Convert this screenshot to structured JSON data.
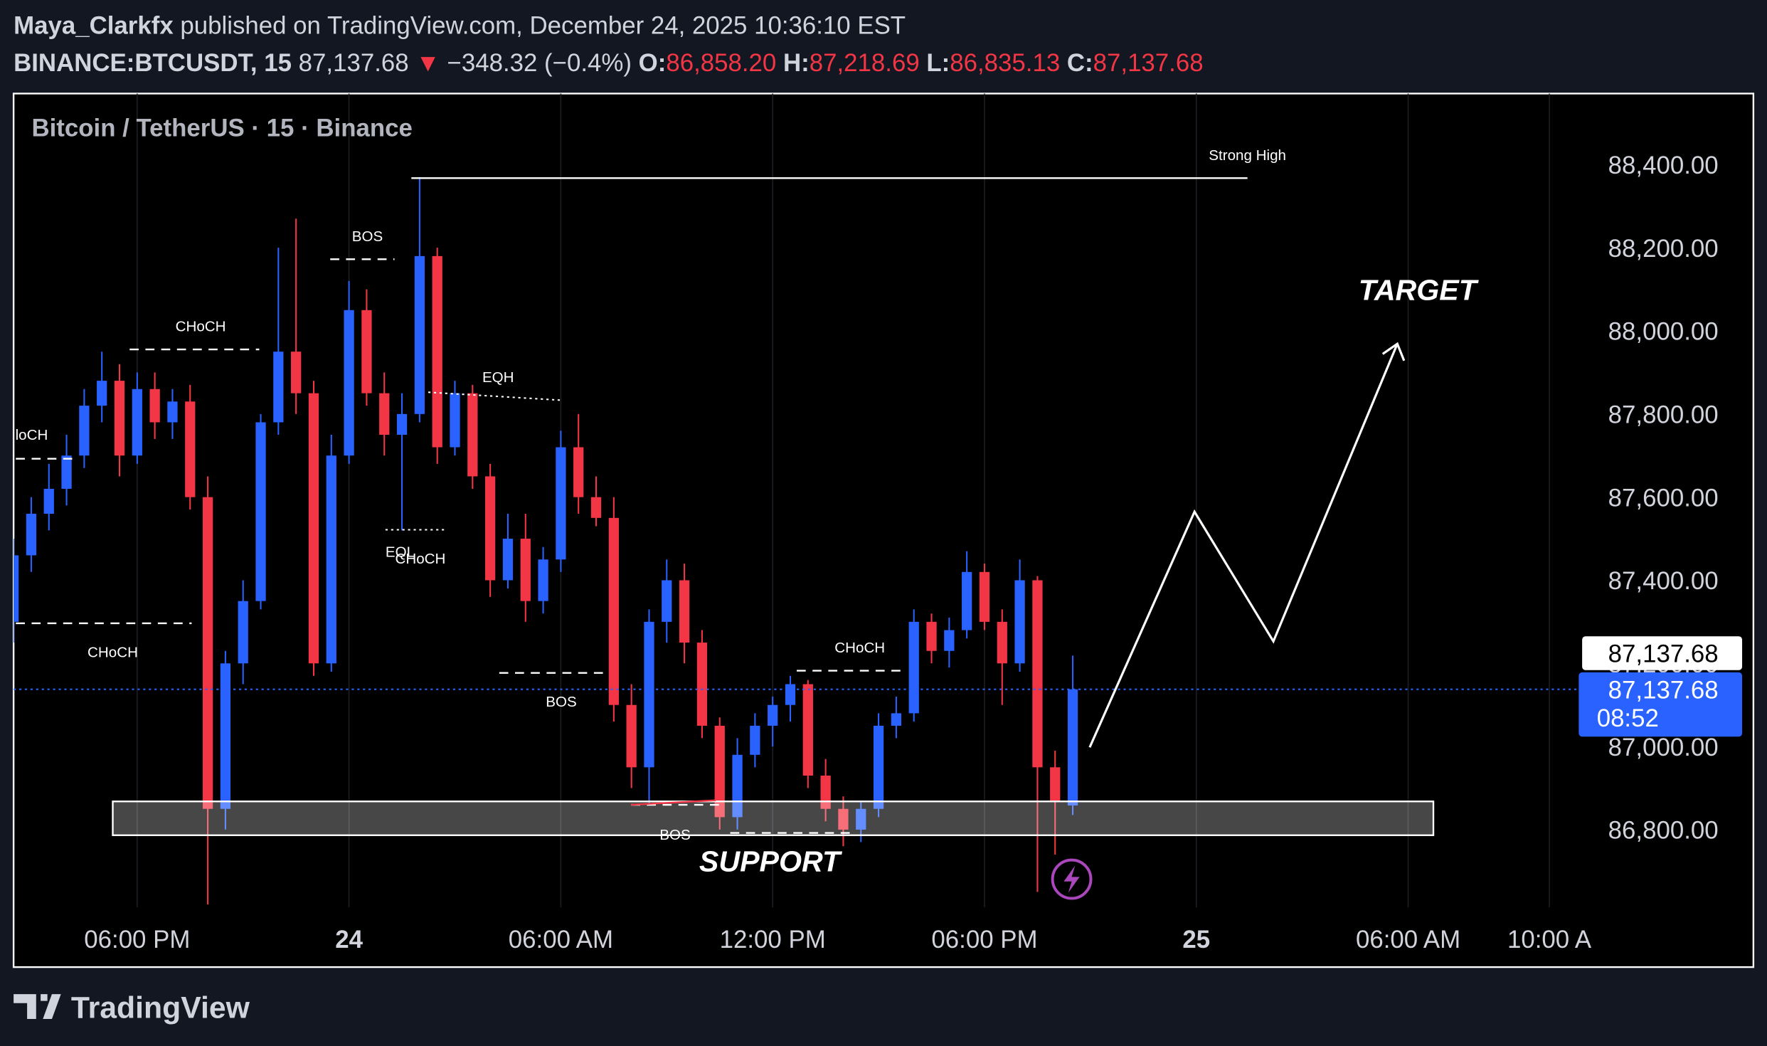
{
  "header": {
    "author": "Maya_Clarkfx",
    "published": "published on TradingView.com, December 24, 2025 10:36:10 EST",
    "symbol": "BINANCE:BTCUSDT, 15",
    "last": "87,137.68",
    "arrow": "▼",
    "change": "−348.32 (−0.4%)",
    "ohlc": [
      {
        "label": "O:",
        "value": "86,858.20"
      },
      {
        "label": "H:",
        "value": "87,218.69"
      },
      {
        "label": "L:",
        "value": "86,835.13"
      },
      {
        "label": "C:",
        "value": "87,137.68"
      }
    ]
  },
  "chart_data": {
    "type": "candlestick",
    "legend": "Bitcoin / TetherUS · 15 · Binance",
    "up_color": "#2962ff",
    "down_color": "#f23645",
    "x": [
      -9.5,
      -9,
      -8.5,
      -8,
      -7.5,
      -7,
      -6.5,
      -6,
      -5.5,
      -5,
      -4.5,
      -4,
      -3.5,
      -3,
      -2.5,
      -2,
      -1.5,
      -1,
      -0.5,
      0,
      0.5,
      1,
      1.5,
      2,
      2.5,
      3,
      3.5,
      4,
      4.5,
      5,
      5.5,
      6,
      6.5,
      7,
      7.5,
      8,
      8.5,
      9,
      9.5,
      10,
      10.5,
      11,
      11.5,
      12,
      12.5,
      13,
      13.5,
      14,
      14.5,
      15,
      15.5,
      16,
      16.5,
      17,
      17.5,
      18,
      18.5,
      19,
      19.5,
      20,
      20.5
    ],
    "open": [
      87300,
      87460,
      87560,
      87620,
      87700,
      87820,
      87880,
      87700,
      87860,
      87780,
      87830,
      87600,
      86850,
      87200,
      87350,
      87780,
      87950,
      87850,
      87200,
      87700,
      88050,
      87850,
      87750,
      87800,
      88180,
      87720,
      87850,
      87650,
      87400,
      87500,
      87350,
      87450,
      87720,
      87600,
      87550,
      87100,
      86950,
      87300,
      87400,
      87250,
      87050,
      86830,
      86980,
      87050,
      87100,
      87150,
      86930,
      86850,
      86800,
      86850,
      87050,
      87080,
      87300,
      87230,
      87280,
      87420,
      87300,
      87200,
      87400,
      86950,
      86858.2
    ],
    "high": [
      87500,
      87600,
      87680,
      87750,
      87860,
      87950,
      87920,
      87900,
      87900,
      87860,
      87870,
      87650,
      87230,
      87400,
      87800,
      88200,
      88270,
      87880,
      87750,
      88120,
      88100,
      87900,
      87850,
      88370,
      88200,
      87880,
      87870,
      87680,
      87560,
      87560,
      87480,
      87760,
      87800,
      87650,
      87600,
      87150,
      87330,
      87450,
      87440,
      87280,
      87070,
      87020,
      87080,
      87120,
      87170,
      87160,
      86970,
      86880,
      86870,
      87080,
      87120,
      87330,
      87320,
      87310,
      87470,
      87440,
      87330,
      87450,
      87410,
      86990,
      87218.69
    ],
    "low": [
      87250,
      87420,
      87520,
      87580,
      87670,
      87780,
      87650,
      87680,
      87740,
      87740,
      87570,
      86620,
      86800,
      87150,
      87330,
      87750,
      87800,
      87170,
      87180,
      87680,
      87820,
      87700,
      87520,
      87780,
      87680,
      87700,
      87620,
      87360,
      87380,
      87300,
      87320,
      87420,
      87560,
      87530,
      87060,
      86900,
      86860,
      87250,
      87200,
      87020,
      86800,
      86800,
      86950,
      87000,
      87060,
      86900,
      86820,
      86760,
      86770,
      86830,
      87020,
      87060,
      87200,
      87190,
      87260,
      87280,
      87100,
      87180,
      86650,
      86740,
      86835.13
    ],
    "close": [
      87460,
      87560,
      87620,
      87700,
      87820,
      87880,
      87700,
      87860,
      87780,
      87830,
      87600,
      86850,
      87200,
      87350,
      87780,
      87950,
      87850,
      87200,
      87700,
      88050,
      87850,
      87750,
      87800,
      88180,
      87720,
      87850,
      87650,
      87400,
      87500,
      87350,
      87450,
      87720,
      87600,
      87550,
      87100,
      86950,
      87300,
      87400,
      87250,
      87050,
      86830,
      86980,
      87050,
      87100,
      87150,
      86930,
      86850,
      86800,
      86850,
      87050,
      87080,
      87300,
      87230,
      87280,
      87420,
      87300,
      87200,
      87400,
      86950,
      86870,
      87137.68
    ],
    "xlim": [
      -9.5,
      34.8
    ],
    "ylim": [
      86613,
      88571
    ],
    "xticks": [
      {
        "value": -6,
        "label": "06:00 PM"
      },
      {
        "value": 0,
        "label": "24"
      },
      {
        "value": 6,
        "label": "06:00 AM"
      },
      {
        "value": 12,
        "label": "12:00 PM"
      },
      {
        "value": 18,
        "label": "06:00 PM"
      },
      {
        "value": 24,
        "label": "25"
      },
      {
        "value": 30,
        "label": "06:00 AM"
      },
      {
        "value": 34,
        "label": "10:00 A"
      }
    ],
    "yticks": [
      {
        "value": 86800,
        "label": "86,800.00"
      },
      {
        "value": 87000,
        "label": "87,000.00"
      },
      {
        "value": 87200,
        "label": "87,200.00"
      },
      {
        "value": 87400,
        "label": "87,400.00"
      },
      {
        "value": 87600,
        "label": "87,600.00"
      },
      {
        "value": 87800,
        "label": "87,800.00"
      },
      {
        "value": 88000,
        "label": "88,000.00"
      },
      {
        "value": 88200,
        "label": "88,200.00"
      },
      {
        "value": 88400,
        "label": "88,400.00"
      }
    ],
    "grid": "vertical",
    "last_price": {
      "value": 87137.68,
      "label": "87,137.68"
    },
    "countdown": "08:52",
    "annotations": [
      "Strong High",
      "BOS",
      "CHoCH",
      "EQH",
      "loCH",
      "EQL",
      "CHoCH",
      "CHoCH",
      "BOS",
      "CHoCH",
      "BOS",
      "SUPPORT",
      "TARGET"
    ]
  },
  "footer": {
    "brand": "TradingView"
  }
}
